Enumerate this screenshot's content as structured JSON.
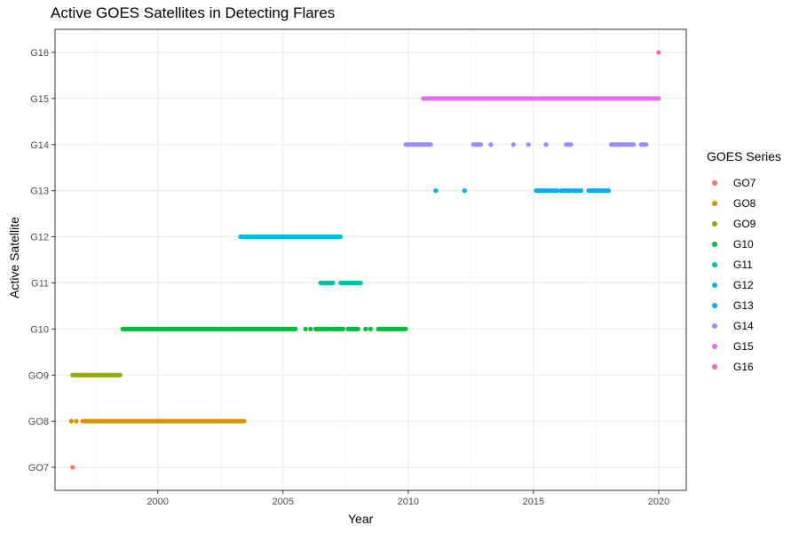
{
  "chart_data": {
    "type": "scatter",
    "title": "Active GOES Satellites in Detecting Flares",
    "xlabel": "Year",
    "ylabel": "Active Satellite",
    "xlim": [
      1995.9,
      2021.1
    ],
    "x_ticks": [
      2000,
      2005,
      2010,
      2015,
      2020
    ],
    "categories": [
      "GO7",
      "GO8",
      "GO9",
      "G10",
      "G11",
      "G12",
      "G13",
      "G14",
      "G15",
      "G16"
    ],
    "grid": true,
    "legend": {
      "title": "GOES Series",
      "position": "right"
    },
    "series": [
      {
        "name": "GO7",
        "color": "#F8766D",
        "points": [
          1996.6
        ],
        "segments": []
      },
      {
        "name": "GO8",
        "color": "#D39200",
        "points": [
          1996.55,
          1996.75
        ],
        "segments": [
          [
            1997.0,
            2003.45
          ]
        ]
      },
      {
        "name": "GO9",
        "color": "#93AA00",
        "points": [],
        "segments": [
          [
            1996.6,
            1998.5
          ]
        ]
      },
      {
        "name": "G10",
        "color": "#00BA38",
        "points": [
          2005.9,
          2006.1,
          2006.5,
          2006.9,
          2007.2,
          2007.6,
          2008.3,
          2008.5
        ],
        "segments": [
          [
            1998.6,
            2005.5
          ],
          [
            2006.3,
            2006.8
          ],
          [
            2007.0,
            2007.4
          ],
          [
            2007.7,
            2008.0
          ],
          [
            2008.8,
            2009.9
          ]
        ]
      },
      {
        "name": "G11",
        "color": "#00C19F",
        "points": [],
        "segments": [
          [
            2006.5,
            2007.0
          ],
          [
            2007.3,
            2007.8
          ],
          [
            2007.85,
            2008.1
          ]
        ]
      },
      {
        "name": "G12",
        "color": "#00B9E3",
        "points": [],
        "segments": [
          [
            2003.3,
            2007.3
          ]
        ]
      },
      {
        "name": "G13",
        "color": "#00ADFA",
        "points": [
          2011.1,
          2012.25
        ],
        "segments": [
          [
            2015.1,
            2015.6
          ],
          [
            2015.7,
            2015.95
          ],
          [
            2016.1,
            2016.5
          ],
          [
            2016.6,
            2016.9
          ],
          [
            2017.2,
            2018.0
          ]
        ]
      },
      {
        "name": "G14",
        "color": "#9590FF",
        "points": [
          2013.3,
          2014.2,
          2014.8,
          2015.5
        ],
        "segments": [
          [
            2009.9,
            2010.9
          ],
          [
            2012.6,
            2012.9
          ],
          [
            2016.3,
            2016.5
          ],
          [
            2018.1,
            2018.6
          ],
          [
            2018.7,
            2019.0
          ],
          [
            2019.3,
            2019.5
          ]
        ]
      },
      {
        "name": "G15",
        "color": "#E76BF3",
        "points": [],
        "segments": [
          [
            2010.6,
            2020.0
          ]
        ]
      },
      {
        "name": "G16",
        "color": "#FF62BC",
        "points": [
          2020.0
        ],
        "segments": []
      }
    ]
  }
}
